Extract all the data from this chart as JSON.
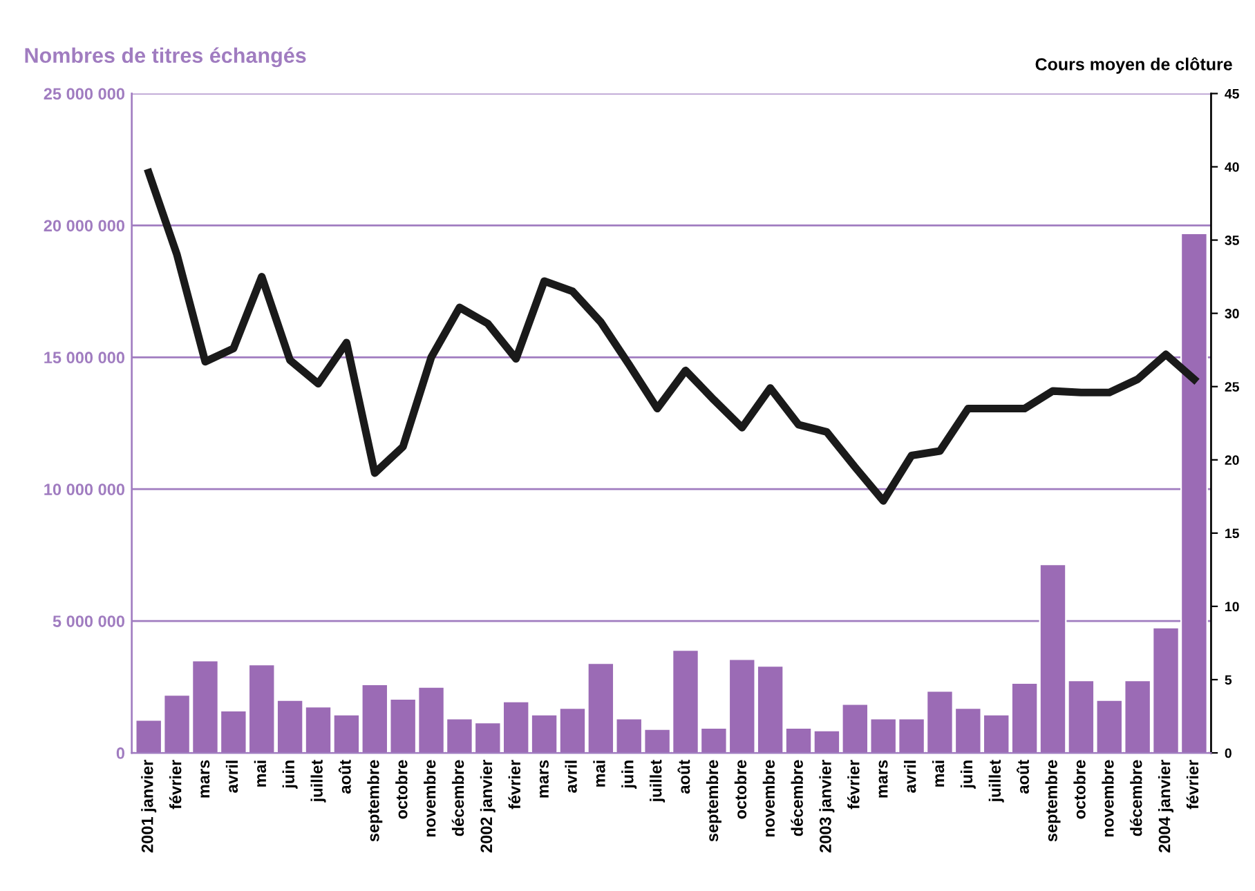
{
  "chart_data": {
    "type": "bar",
    "ylabel": "Nombres de titres échangés",
    "y2label": "Cours moyen de clôture",
    "categories": [
      "2001 janvier",
      "février",
      "mars",
      "avril",
      "mai",
      "juin",
      "juillet",
      "août",
      "septembre",
      "octobre",
      "novembre",
      "décembre",
      "2002 janvier",
      "février",
      "mars",
      "avril",
      "mai",
      "juin",
      "juillet",
      "août",
      "septembre",
      "octobre",
      "novembre",
      "décembre",
      "2003 janvier",
      "février",
      "mars",
      "avril",
      "mai",
      "juin",
      "juillet",
      "août",
      "septembre",
      "octobre",
      "novembre",
      "décembre",
      "2004 janvier",
      "février"
    ],
    "series": [
      {
        "color": "#9b6bb5",
        "values": [
          1250000,
          2200000,
          3500000,
          1600000,
          3350000,
          2000000,
          1750000,
          1450000,
          2600000,
          2050000,
          2500000,
          1300000,
          1150000,
          1950000,
          1450000,
          1700000,
          3400000,
          1300000,
          900000,
          3900000,
          950000,
          3550000,
          3300000,
          950000,
          850000,
          1850000,
          1300000,
          1300000,
          2350000,
          1700000,
          1450000,
          2650000,
          7150000,
          2750000,
          2000000,
          2750000,
          4750000,
          19700000
        ]
      },
      {
        "type": "line",
        "axis": "y2",
        "color": "#1a1a1a",
        "values": [
          39.6,
          34.0,
          26.7,
          27.6,
          32.5,
          26.8,
          25.2,
          28.0,
          19.1,
          20.9,
          27.0,
          30.4,
          29.3,
          26.9,
          32.2,
          31.5,
          29.4,
          26.5,
          23.5,
          26.1,
          24.1,
          22.2,
          24.9,
          22.4,
          21.9,
          19.5,
          17.2,
          20.3,
          20.6,
          23.5,
          23.5,
          23.5,
          24.7,
          24.6,
          24.6,
          25.5,
          27.2,
          25.5
        ]
      }
    ],
    "ylim": [
      0,
      25000000
    ],
    "yticks": [
      {
        "value": 0,
        "label": "0"
      },
      {
        "value": 5000000,
        "label": "5 000 000"
      },
      {
        "value": 10000000,
        "label": "10 000 000"
      },
      {
        "value": 15000000,
        "label": "15 000 000"
      },
      {
        "value": 20000000,
        "label": "20 000 000"
      },
      {
        "value": 25000000,
        "label": "25 000 000"
      }
    ],
    "y2lim": [
      0,
      45
    ],
    "y2ticks": [
      0,
      5,
      10,
      15,
      20,
      25,
      30,
      35,
      40,
      45
    ],
    "grid": "y",
    "legend": false,
    "line_style": "solid",
    "marker": "none"
  }
}
